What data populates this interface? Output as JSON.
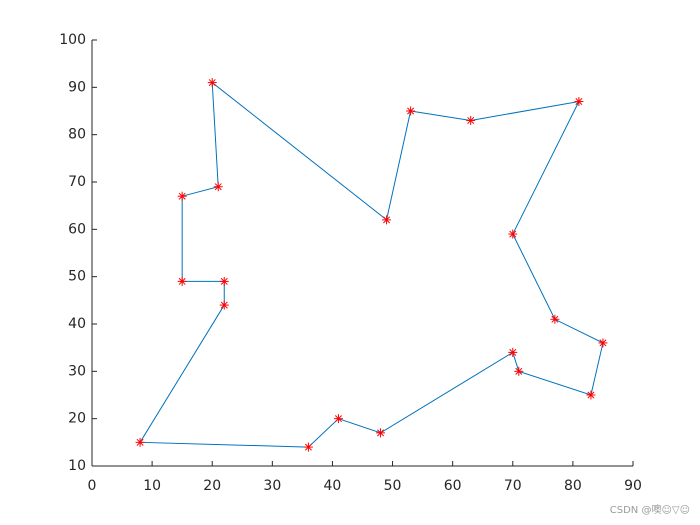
{
  "chart_data": {
    "type": "line",
    "x": [
      49,
      20,
      21,
      15,
      15,
      22,
      22,
      8,
      36,
      41,
      48,
      70,
      71,
      83,
      85,
      77,
      70,
      81,
      63,
      53
    ],
    "series": [
      {
        "line_color": "#0072bd",
        "marker": "*",
        "marker_color": "#ff0000",
        "values": [
          62,
          91,
          69,
          67,
          49,
          49,
          44,
          15,
          14,
          20,
          17,
          34,
          30,
          25,
          36,
          41,
          59,
          87,
          83,
          85
        ]
      }
    ],
    "closed": true,
    "xlim": [
      0,
      90
    ],
    "xticks": [
      0,
      10,
      20,
      30,
      40,
      50,
      60,
      70,
      80,
      90
    ],
    "ylim": [
      10,
      100
    ],
    "yticks": [
      10,
      20,
      30,
      40,
      50,
      60,
      70,
      80,
      90,
      100
    ],
    "grid": false
  },
  "watermark": "CSDN @噢☺▽☺"
}
